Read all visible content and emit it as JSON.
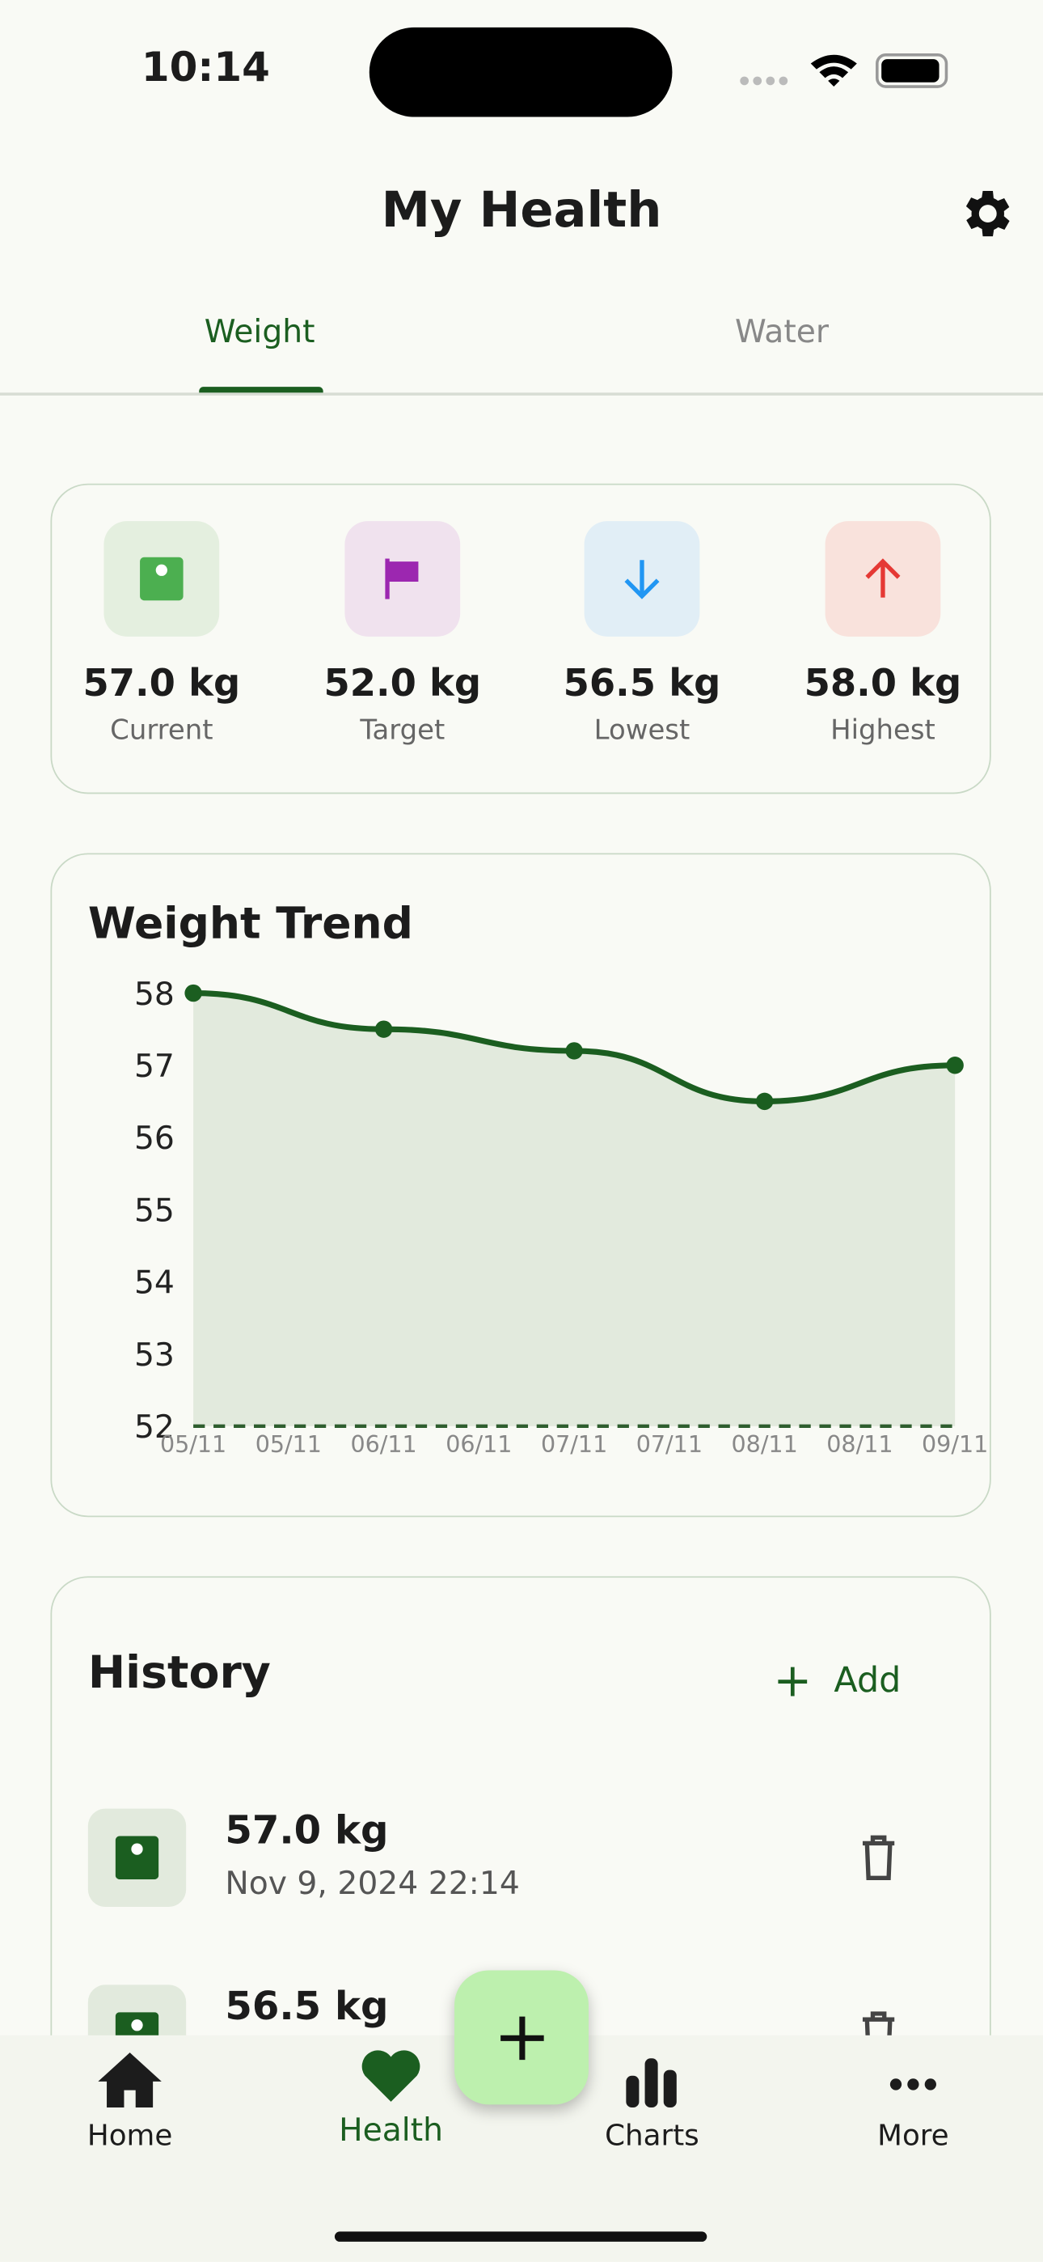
{
  "status_bar": {
    "time": "10:14"
  },
  "header": {
    "title": "My Health"
  },
  "tabs": [
    "Weight",
    "Water"
  ],
  "stats": [
    {
      "value": "57.0 kg",
      "label": "Current"
    },
    {
      "value": "52.0 kg",
      "label": "Target"
    },
    {
      "value": "56.5 kg",
      "label": "Lowest"
    },
    {
      "value": "58.0 kg",
      "label": "Highest"
    }
  ],
  "chart_data": {
    "type": "line",
    "title": "Weight Trend",
    "x": [
      "05/11",
      "06/11",
      "07/11",
      "08/11",
      "09/11"
    ],
    "xtick_labels": [
      "05/11",
      "05/11",
      "06/11",
      "06/11",
      "07/11",
      "07/11",
      "08/11",
      "08/11",
      "09/11"
    ],
    "series": [
      {
        "name": "Weight",
        "color": "#1b5e20",
        "values": [
          58.0,
          57.5,
          57.2,
          56.5,
          57.0
        ]
      }
    ],
    "ylim": [
      52,
      58
    ],
    "yticks": [
      52,
      53,
      54,
      55,
      56,
      57,
      58
    ],
    "fill_color": "#e2eadd"
  },
  "history": {
    "title": "History",
    "add": "Add",
    "items": [
      {
        "weight": "57.0 kg",
        "date": "Nov 9, 2024 22:14"
      },
      {
        "weight": "56.5 kg"
      }
    ]
  },
  "nav": [
    "Home",
    "Health",
    "Charts",
    "More"
  ]
}
